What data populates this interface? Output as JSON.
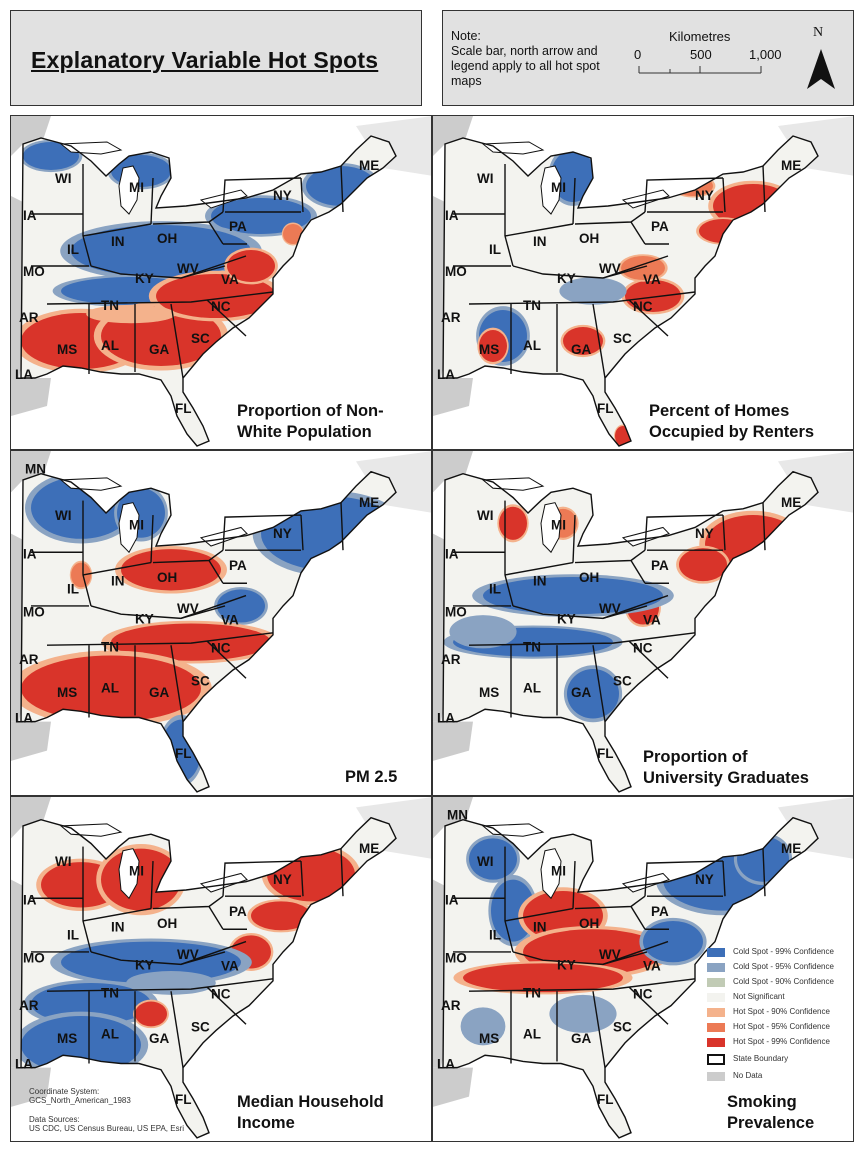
{
  "header": {
    "title": "Explanatory Variable Hot Spots"
  },
  "note": {
    "lines": [
      "Note:",
      "Scale bar, north arrow and",
      "legend apply to all hot spot",
      "maps"
    ],
    "scale_title": "Kilometres",
    "scale_labels": [
      "0",
      "500",
      "1,000"
    ],
    "north_label": "N"
  },
  "colors": {
    "cold99": "#3d6fb8",
    "cold95": "#8aa3c2",
    "cold90": "#c1cbb5",
    "notsig": "#f3f3ef",
    "hot90": "#f4b28c",
    "hot95": "#ec7a55",
    "hot99": "#d9342a",
    "nodata": "#cccccc"
  },
  "legend": {
    "items": [
      {
        "label": "Cold Spot - 99% Confidence",
        "color": "#3d6fb8"
      },
      {
        "label": "Cold Spot - 95% Confidence",
        "color": "#8aa3c2"
      },
      {
        "label": "Cold Spot - 90% Confidence",
        "color": "#c1cbb5"
      },
      {
        "label": "Not Significant",
        "color": "#f3f3ef"
      },
      {
        "label": "Hot Spot - 90% Confidence",
        "color": "#f4b28c"
      },
      {
        "label": "Hot Spot - 95% Confidence",
        "color": "#ec7a55"
      },
      {
        "label": "Hot Spot - 99% Confidence",
        "color": "#d9342a"
      },
      {
        "label": "State Boundary",
        "color": "#ffffff"
      },
      {
        "label": "No Data",
        "color": "#cccccc"
      }
    ]
  },
  "credits": {
    "coord_system": [
      "Coordinate System:",
      "GCS_North_American_1983"
    ],
    "data_sources": [
      "Data Sources:",
      "US CDC, US Census Bureau, US EPA, Esri"
    ]
  },
  "panels": [
    {
      "title": [
        "Proportion of Non-",
        "White Population"
      ],
      "states": [
        "WI",
        "MI",
        "ME",
        "NY",
        "IA",
        "IN",
        "OH",
        "PA",
        "IL",
        "MO",
        "KY",
        "WV",
        "VA",
        "AR",
        "TN",
        "NC",
        "MS",
        "AL",
        "GA",
        "SC",
        "LA",
        "FL"
      ]
    },
    {
      "title": [
        "Percent of Homes",
        "Occupied by Renters"
      ],
      "states": [
        "WI",
        "MI",
        "ME",
        "NY",
        "IA",
        "IN",
        "OH",
        "PA",
        "IL",
        "MO",
        "KY",
        "WV",
        "VA",
        "AR",
        "TN",
        "NC",
        "MS",
        "AL",
        "GA",
        "SC",
        "LA",
        "FL"
      ]
    },
    {
      "title": [
        "PM 2.5"
      ],
      "states": [
        "MN",
        "WI",
        "MI",
        "ME",
        "NY",
        "IA",
        "IN",
        "OH",
        "PA",
        "IL",
        "MO",
        "KY",
        "WV",
        "VA",
        "AR",
        "TN",
        "NC",
        "MS",
        "AL",
        "GA",
        "SC",
        "LA",
        "FL"
      ]
    },
    {
      "title": [
        "Proportion of",
        "University Graduates"
      ],
      "states": [
        "WI",
        "MI",
        "ME",
        "NY",
        "IA",
        "IN",
        "OH",
        "PA",
        "IL",
        "MO",
        "KY",
        "WV",
        "VA",
        "AR",
        "TN",
        "NC",
        "MS",
        "AL",
        "GA",
        "SC",
        "LA",
        "FL"
      ]
    },
    {
      "title": [
        "Median Household",
        "Income"
      ],
      "states": [
        "WI",
        "MI",
        "ME",
        "NY",
        "IA",
        "IN",
        "OH",
        "PA",
        "IL",
        "MO",
        "KY",
        "WV",
        "VA",
        "AR",
        "TN",
        "NC",
        "MS",
        "AL",
        "GA",
        "SC",
        "LA",
        "FL"
      ]
    },
    {
      "title": [
        "Smoking",
        "Prevalence"
      ],
      "states": [
        "MN",
        "WI",
        "MI",
        "ME",
        "NY",
        "IA",
        "IN",
        "OH",
        "PA",
        "IL",
        "MO",
        "KY",
        "WV",
        "VA",
        "AR",
        "TN",
        "NC",
        "MS",
        "AL",
        "GA",
        "SC",
        "LA",
        "FL"
      ]
    }
  ]
}
